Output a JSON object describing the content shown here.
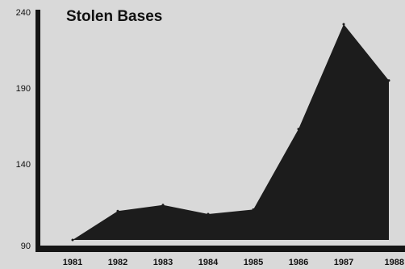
{
  "chart_data": {
    "type": "area",
    "title": "Stolen Bases",
    "xlabel": "",
    "ylabel": "",
    "categories": [
      "1981",
      "1982",
      "1983",
      "1984",
      "1985",
      "1986",
      "1987",
      "1988"
    ],
    "series": [
      {
        "values": [
          90,
          109,
          113,
          107,
          110,
          163,
          232,
          195
        ]
      }
    ],
    "yticks": [
      90,
      140,
      190,
      240
    ],
    "ylim": [
      90,
      240
    ],
    "grid": false,
    "legend": "none"
  },
  "colors": {
    "background": "#d9d9d9",
    "area_fill": "#1c1c1c",
    "axis": "#151515",
    "text": "#111111"
  }
}
